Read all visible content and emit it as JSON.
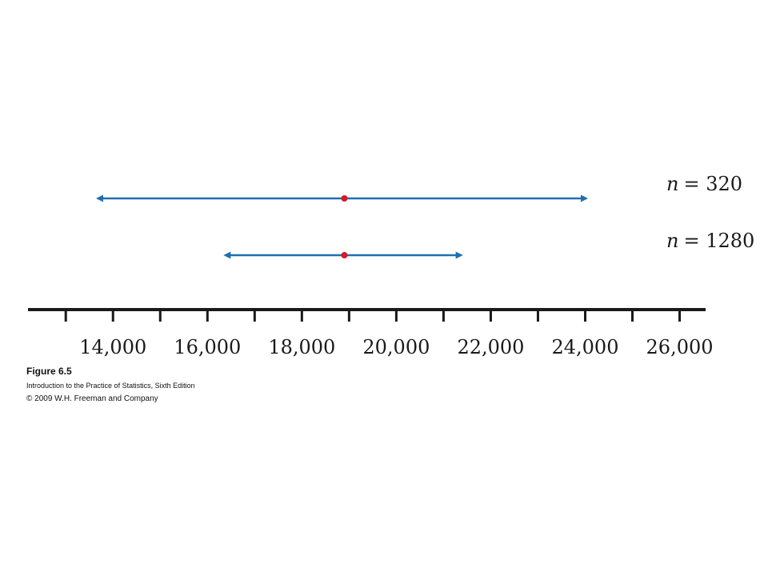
{
  "chart_data": {
    "type": "interval",
    "x_ticks": [
      13000,
      14000,
      15000,
      16000,
      17000,
      18000,
      19000,
      20000,
      21000,
      22000,
      23000,
      24000,
      25000,
      26000
    ],
    "tick_labels": [
      {
        "value": 14000,
        "label": "14,000"
      },
      {
        "value": 16000,
        "label": "16,000"
      },
      {
        "value": 18000,
        "label": "18,000"
      },
      {
        "value": 20000,
        "label": "20,000"
      },
      {
        "value": 22000,
        "label": "22,000"
      },
      {
        "value": 24000,
        "label": "24,000"
      },
      {
        "value": 26000,
        "label": "26,000"
      }
    ],
    "xlim": [
      12200,
      26550
    ],
    "intervals": [
      {
        "n_symbol": "n",
        "n_text": "= 320",
        "center": 18900,
        "low": 13550,
        "high": 24150
      },
      {
        "n_symbol": "n",
        "n_text": "= 1280",
        "center": 18900,
        "low": 16250,
        "high": 21500
      }
    ],
    "colors": {
      "interval": "#1f6fb0",
      "center": "#d7182a",
      "axis": "#1a1a1a"
    }
  },
  "caption": {
    "title": "Figure 6.5",
    "book": "Introduction to the Practice of Statistics, Sixth Edition",
    "copyright": "© 2009 W.H. Freeman and Company"
  }
}
